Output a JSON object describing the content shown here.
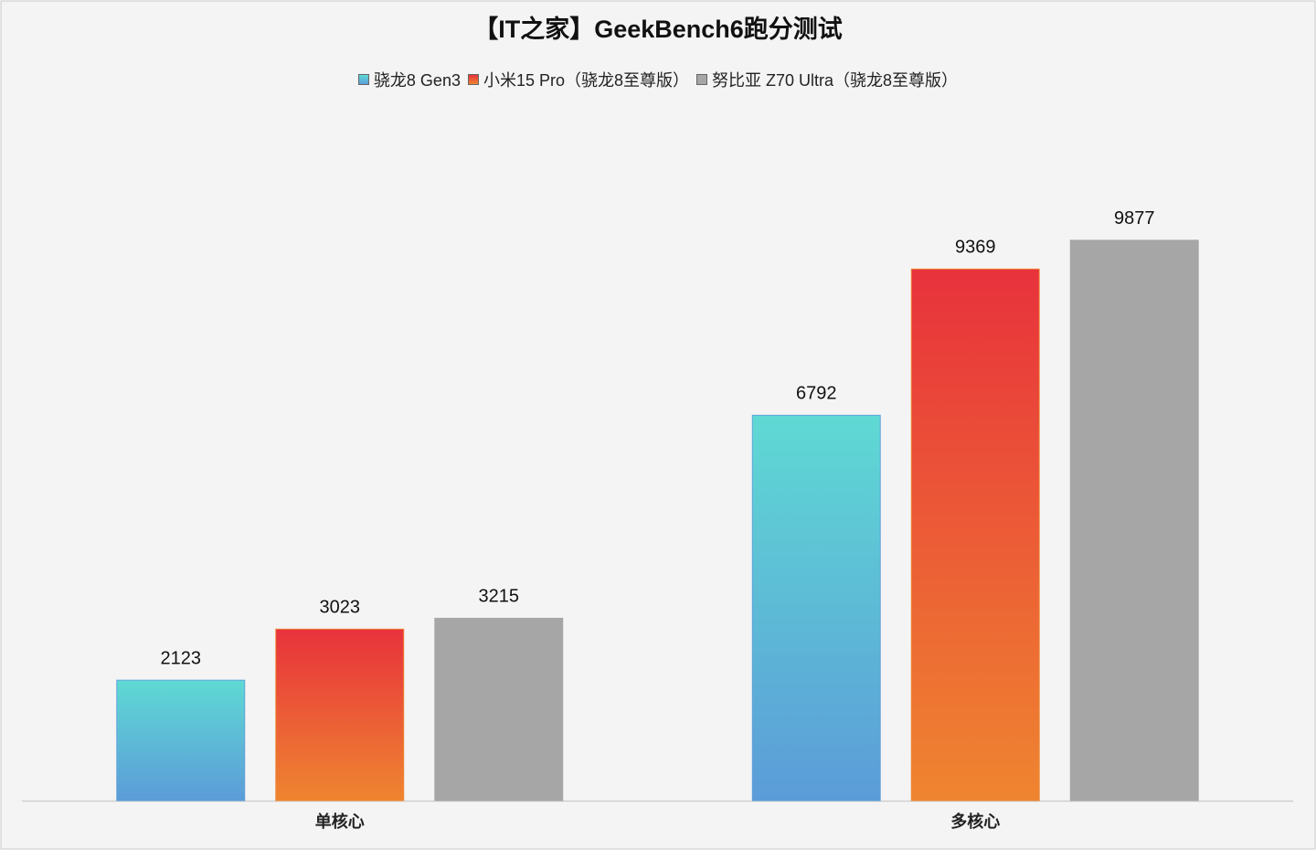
{
  "chart_data": {
    "type": "bar",
    "title": "【IT之家】GeekBench6跑分测试",
    "categories": [
      "单核心",
      "多核心"
    ],
    "series": [
      {
        "name": "骁龙8 Gen3",
        "color": [
          "#5fd9d4",
          "#5b9cd8"
        ],
        "values": [
          2123,
          6792
        ]
      },
      {
        "name": "小米15 Pro（骁龙8至尊版）",
        "color": [
          "#e8323c",
          "#ef8530"
        ],
        "values": [
          3023,
          9369
        ]
      },
      {
        "name": "努比亚 Z70 Ultra（骁龙8至尊版）",
        "color": [
          "#a6a6a6",
          "#a6a6a6"
        ],
        "values": [
          3215,
          9877
        ]
      }
    ],
    "ylim": [
      0,
      12000
    ]
  }
}
